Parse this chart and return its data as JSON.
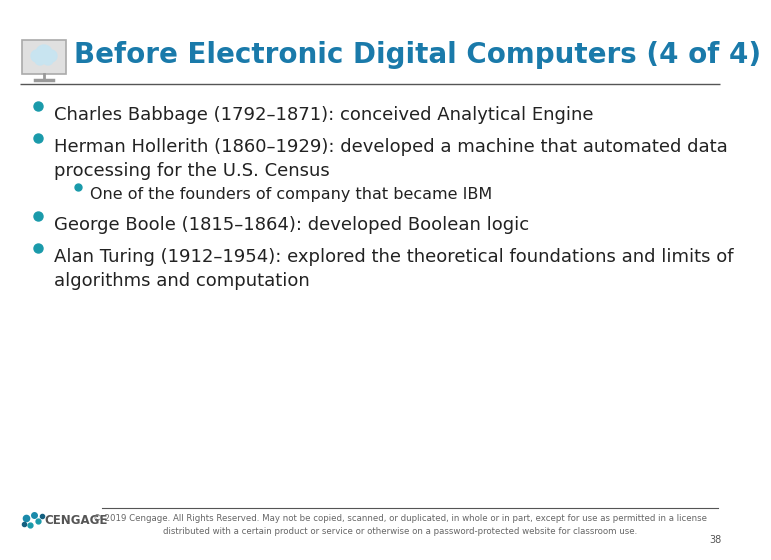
{
  "title": "Before Electronic Digital Computers (4 of 4)",
  "title_color": "#1a7aaa",
  "title_fontsize": 20,
  "bg_color": "#ffffff",
  "bullet_color": "#1a9aaa",
  "text_color": "#222222",
  "bullet_items": [
    {
      "level": 1,
      "text": "Charles Babbage (1792–1871): conceived Analytical Engine"
    },
    {
      "level": 1,
      "text": "Herman Hollerith (1860–1929): developed a machine that automated data\nprocessing for the U.S. Census"
    },
    {
      "level": 2,
      "text": "One of the founders of company that became IBM"
    },
    {
      "level": 1,
      "text": "George Boole (1815–1864): developed Boolean logic"
    },
    {
      "level": 1,
      "text": "Alan Turing (1912–1954): explored the theoretical foundations and limits of\nalgorithms and computation"
    }
  ],
  "footer_text": "© 2019 Cengage. All Rights Reserved. May not be copied, scanned, or duplicated, in whole or in part, except for use as permitted in a license\ndistributed with a certain product or service or otherwise on a password-protected website for classroom use.",
  "page_number": "38",
  "line_color": "#555555",
  "bullet1_fontsize": 13,
  "bullet2_fontsize": 11.5,
  "footer_fontsize": 6.2
}
